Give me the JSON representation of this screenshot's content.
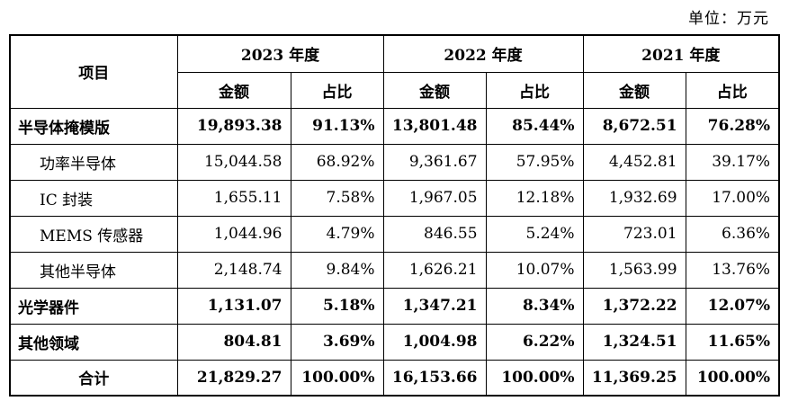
{
  "unit_note": "单位：万元",
  "header": {
    "item": "项目",
    "years": [
      "2023 年度",
      "2022 年度",
      "2021 年度"
    ],
    "amount": "金额",
    "ratio": "占比"
  },
  "rows": [
    {
      "label": "半导体掩模版",
      "bold": true,
      "indent": false,
      "cells": [
        "19,893.38",
        "91.13%",
        "13,801.48",
        "85.44%",
        "8,672.51",
        "76.28%"
      ]
    },
    {
      "label": "功率半导体",
      "bold": false,
      "indent": true,
      "cells": [
        "15,044.58",
        "68.92%",
        "9,361.67",
        "57.95%",
        "4,452.81",
        "39.17%"
      ]
    },
    {
      "label": "IC 封装",
      "bold": false,
      "indent": true,
      "cells": [
        "1,655.11",
        "7.58%",
        "1,967.05",
        "12.18%",
        "1,932.69",
        "17.00%"
      ]
    },
    {
      "label": "MEMS 传感器",
      "bold": false,
      "indent": true,
      "cells": [
        "1,044.96",
        "4.79%",
        "846.55",
        "5.24%",
        "723.01",
        "6.36%"
      ]
    },
    {
      "label": "其他半导体",
      "bold": false,
      "indent": true,
      "cells": [
        "2,148.74",
        "9.84%",
        "1,626.21",
        "10.07%",
        "1,563.99",
        "13.76%"
      ]
    },
    {
      "label": "光学器件",
      "bold": true,
      "indent": false,
      "cells": [
        "1,131.07",
        "5.18%",
        "1,347.21",
        "8.34%",
        "1,372.22",
        "12.07%"
      ]
    },
    {
      "label": "其他领域",
      "bold": true,
      "indent": false,
      "cells": [
        "804.81",
        "3.69%",
        "1,004.98",
        "6.22%",
        "1,324.51",
        "11.65%"
      ]
    },
    {
      "label": "合计",
      "bold": true,
      "indent": false,
      "total": true,
      "cells": [
        "21,829.27",
        "100.00%",
        "16,153.66",
        "100.00%",
        "11,369.25",
        "100.00%"
      ]
    }
  ]
}
